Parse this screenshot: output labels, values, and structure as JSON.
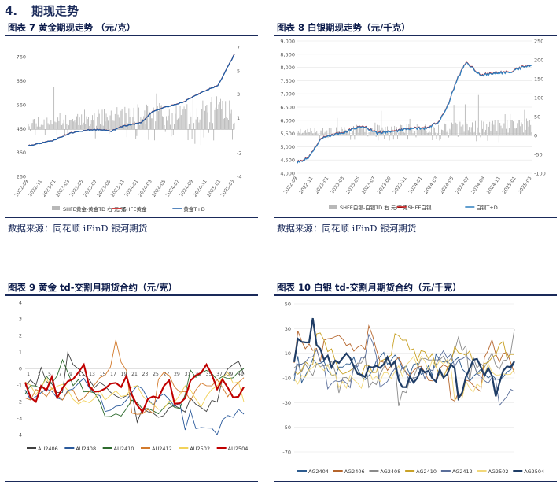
{
  "section": {
    "number": "4.",
    "title": "期现走势"
  },
  "sources": {
    "left": "数据来源：同花顺 iFinD   银河期货",
    "right": "数据来源：同花顺 iFinD   银河期货"
  },
  "charts": [
    {
      "caption": "图表 7 黄金期现走势 （元/克）",
      "chart_data": {
        "type": "line",
        "y_left_ticks": [
          "260",
          "360",
          "460",
          "560",
          "660",
          "760"
        ],
        "y_left_range": [
          260,
          800
        ],
        "y_right_ticks": [
          "-4",
          "-2",
          "1",
          "3",
          "5",
          "7"
        ],
        "y_right_range": [
          -4,
          7
        ],
        "x_ticks": [
          "2022-09",
          "2022-11",
          "2023-01",
          "2023-03",
          "2023-05",
          "2023-07",
          "2023-09",
          "2023-11",
          "2024-01",
          "2024-03",
          "2024-05",
          "2024-07",
          "2024-09",
          "2024-11",
          "2025-01",
          "2025-03"
        ],
        "series": [
          {
            "name": "SHFE黄金-黄金TD 右 元/克",
            "kind": "bar",
            "axis": "right",
            "color": "#b8b8b8"
          },
          {
            "name": "SHFE黄金",
            "kind": "line",
            "axis": "left",
            "color": "#c00000"
          },
          {
            "name": "黄金T+D",
            "kind": "line",
            "axis": "left",
            "color": "#1f5fa8"
          }
        ],
        "anchors": [
          [
            0,
            388
          ],
          [
            0.12,
            410
          ],
          [
            0.2,
            440
          ],
          [
            0.3,
            455
          ],
          [
            0.36,
            455
          ],
          [
            0.4,
            448
          ],
          [
            0.46,
            470
          ],
          [
            0.55,
            485
          ],
          [
            0.6,
            530
          ],
          [
            0.65,
            545
          ],
          [
            0.75,
            570
          ],
          [
            0.85,
            615
          ],
          [
            0.92,
            640
          ],
          [
            1.0,
            770
          ]
        ]
      }
    },
    {
      "caption": "图表 8 白银期现走势（元/千克）",
      "chart_data": {
        "type": "line",
        "y_left_ticks": [
          "4,000",
          "4,500",
          "5,000",
          "5,500",
          "6,000",
          "6,500",
          "7,000",
          "7,500",
          "8,000",
          "8,500",
          "9,000"
        ],
        "y_left_range": [
          4000,
          9000
        ],
        "y_right_ticks": [
          "-100",
          "-50",
          "0",
          "50",
          "100",
          "150",
          "200",
          "250"
        ],
        "y_right_range": [
          -100,
          250
        ],
        "x_ticks": [
          "2022-09",
          "2022-11",
          "2023-01",
          "2023-03",
          "2023-05",
          "2023-07",
          "2023-09",
          "2023-11",
          "2024-01",
          "2024-03",
          "2024-05",
          "2024-07",
          "2024-09",
          "2024-11",
          "2025-01",
          "2025-03"
        ],
        "series": [
          {
            "name": "SHFE白银-白银TD 右 元/千克",
            "kind": "bar",
            "axis": "right",
            "color": "#b8b8b8"
          },
          {
            "name": "SHFE白银",
            "kind": "line",
            "axis": "left",
            "color": "#c00000"
          },
          {
            "name": "白银T+D",
            "kind": "line",
            "axis": "left",
            "color": "#2e7fbf"
          }
        ],
        "anchors": [
          [
            0,
            4400
          ],
          [
            0.05,
            4600
          ],
          [
            0.1,
            5300
          ],
          [
            0.16,
            5450
          ],
          [
            0.22,
            5600
          ],
          [
            0.28,
            5800
          ],
          [
            0.34,
            5500
          ],
          [
            0.42,
            5600
          ],
          [
            0.5,
            5700
          ],
          [
            0.55,
            5700
          ],
          [
            0.6,
            5900
          ],
          [
            0.64,
            6500
          ],
          [
            0.68,
            7500
          ],
          [
            0.72,
            8200
          ],
          [
            0.78,
            7700
          ],
          [
            0.84,
            7800
          ],
          [
            0.9,
            7800
          ],
          [
            0.96,
            8000
          ],
          [
            1.0,
            8100
          ]
        ]
      }
    },
    {
      "caption": "图表 9 黄金 td-交割月期货合约（元/克）",
      "chart_data": {
        "type": "line",
        "y_ticks": [
          "-4",
          "-3",
          "-2",
          "-1",
          "0",
          "1",
          "2",
          "3",
          "4"
        ],
        "y_range": [
          -4,
          4
        ],
        "x_labels": [
          "1",
          "3",
          "5",
          "7",
          "9",
          "11",
          "13",
          "15",
          "17",
          "19",
          "21",
          "23",
          "25",
          "27",
          "29",
          "31",
          "33",
          "35",
          "37",
          "39",
          "41"
        ],
        "series": [
          {
            "name": "AU2406",
            "color": "#404040"
          },
          {
            "name": "AU2408",
            "color": "#2b5a9b"
          },
          {
            "name": "AU2410",
            "color": "#2e6b2e"
          },
          {
            "name": "AU2412",
            "color": "#d27a2c"
          },
          {
            "name": "AU2502",
            "color": "#f2d25a"
          },
          {
            "name": "AU2504",
            "color": "#c00000"
          }
        ]
      }
    },
    {
      "caption": "图表 10 白银 td-交割月期货合约（元/千克）",
      "chart_data": {
        "type": "line",
        "y_ticks": [
          "-70",
          "-50",
          "-30",
          "-10",
          "10",
          "30",
          "50"
        ],
        "y_range": [
          -70,
          50
        ],
        "series": [
          {
            "name": "AG2404",
            "color": "#2e5c8f"
          },
          {
            "name": "AG2406",
            "color": "#b5652c"
          },
          {
            "name": "AG2408",
            "color": "#8a8a8a"
          },
          {
            "name": "AG2410",
            "color": "#c9a227"
          },
          {
            "name": "AG2412",
            "color": "#5a6e9a"
          },
          {
            "name": "AG2502",
            "color": "#f2d87a"
          },
          {
            "name": "AG2504",
            "color": "#1f3d66"
          }
        ]
      }
    }
  ]
}
